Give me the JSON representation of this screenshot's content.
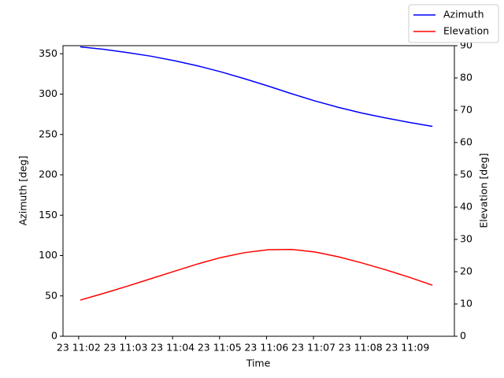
{
  "chart_data": {
    "type": "line",
    "xlabel": "Time",
    "ylabel": "Azimuth [deg]",
    "y2label": "Elevation [deg]",
    "x": [
      "11:02:02",
      "11:02:32",
      "11:03:02",
      "11:03:32",
      "11:04:02",
      "11:04:32",
      "11:05:02",
      "11:05:32",
      "11:06:02",
      "11:06:32",
      "11:07:02",
      "11:07:32",
      "11:08:02",
      "11:08:32",
      "11:09:02",
      "11:09:32"
    ],
    "series": [
      {
        "name": "Azimuth",
        "color": "#0000ff",
        "values": [
          358.5,
          355.5,
          351.5,
          347,
          341.5,
          335,
          327.5,
          319,
          310,
          300.5,
          291.5,
          283.5,
          276.5,
          270.5,
          265,
          260
        ]
      },
      {
        "name": "Elevation",
        "color": "#ff0000",
        "axis": "y2",
        "values": [
          11.2,
          13.3,
          15.5,
          17.8,
          20.1,
          22.4,
          24.4,
          25.9,
          26.8,
          26.9,
          26.1,
          24.6,
          22.7,
          20.6,
          18.3,
          15.8
        ]
      }
    ],
    "xlim": [
      "11:01:40",
      "11:10:00"
    ],
    "xticks": [
      {
        "value": "11:02:00",
        "label": "23 11:02"
      },
      {
        "value": "11:03:00",
        "label": "23 11:03"
      },
      {
        "value": "11:04:00",
        "label": "23 11:04"
      },
      {
        "value": "11:05:00",
        "label": "23 11:05"
      },
      {
        "value": "11:06:00",
        "label": "23 11:06"
      },
      {
        "value": "11:07:00",
        "label": "23 11:07"
      },
      {
        "value": "11:08:00",
        "label": "23 11:08"
      },
      {
        "value": "11:09:00",
        "label": "23 11:09"
      }
    ],
    "ylim": [
      0,
      360
    ],
    "yticks": [
      0,
      50,
      100,
      150,
      200,
      250,
      300,
      350
    ],
    "y2lim": [
      0,
      90
    ],
    "y2ticks": [
      0,
      10,
      20,
      30,
      40,
      50,
      60,
      70,
      80,
      90
    ],
    "legend": "upper right"
  }
}
